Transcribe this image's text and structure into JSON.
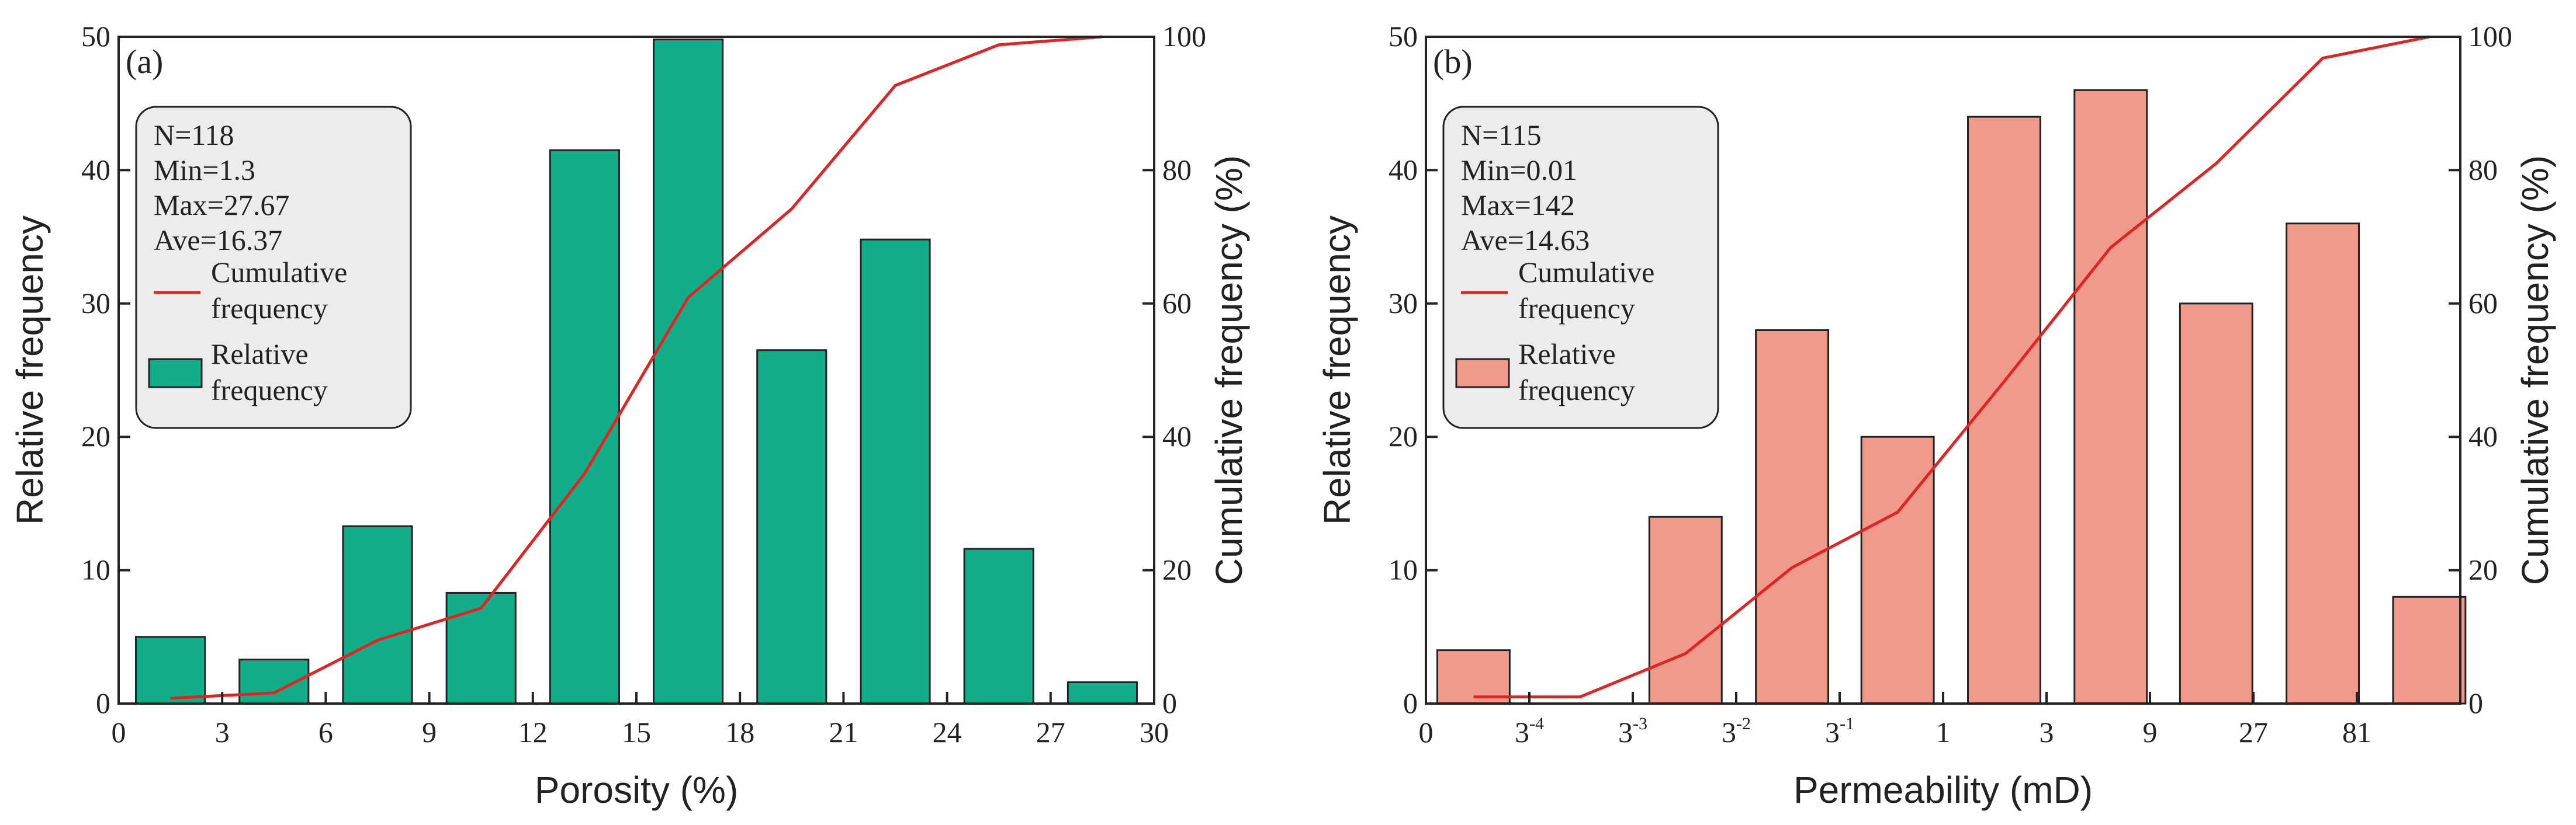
{
  "chart_data": [
    {
      "type": "bar",
      "panel_label": "(a)",
      "xlabel": "Porosity (%)",
      "ylabel": "Relative frequency",
      "y2label": "Cumulative frequency (%)",
      "x_ticks": [
        "0",
        "3",
        "6",
        "9",
        "12",
        "15",
        "18",
        "21",
        "24",
        "27",
        "30"
      ],
      "xlim": [
        0,
        30
      ],
      "ylim": [
        0,
        50
      ],
      "y_ticks": [
        0,
        10,
        20,
        30,
        40,
        50
      ],
      "y2lim": [
        0,
        100
      ],
      "y2_ticks": [
        0,
        20,
        40,
        60,
        80,
        100
      ],
      "bar_color": "#14ad89",
      "line_color": "#e02424",
      "bins": [
        {
          "x0": 0.5,
          "x1": 2.5,
          "value": 5.0
        },
        {
          "x0": 3.5,
          "x1": 5.5,
          "value": 3.3
        },
        {
          "x0": 6.5,
          "x1": 8.5,
          "value": 13.3
        },
        {
          "x0": 9.5,
          "x1": 11.5,
          "value": 8.3
        },
        {
          "x0": 12.5,
          "x1": 14.5,
          "value": 41.5
        },
        {
          "x0": 15.5,
          "x1": 17.5,
          "value": 49.8
        },
        {
          "x0": 18.5,
          "x1": 20.5,
          "value": 26.5
        },
        {
          "x0": 21.5,
          "x1": 23.5,
          "value": 34.8
        },
        {
          "x0": 24.5,
          "x1": 26.5,
          "value": 11.6
        },
        {
          "x0": 27.5,
          "x1": 29.5,
          "value": 1.6
        }
      ],
      "cumulative": {
        "x": [
          1.5,
          4.5,
          7.5,
          10.5,
          13.5,
          16.5,
          19.5,
          22.5,
          25.5,
          28.5
        ],
        "y": [
          0.8,
          1.6,
          9.5,
          14.3,
          34.5,
          60.9,
          74.2,
          92.7,
          98.8,
          100
        ]
      },
      "stats": [
        "N=118",
        "Min=1.3",
        "Max=27.67",
        "Ave=16.37"
      ],
      "legend": {
        "line": [
          "Cumulative",
          "frequency"
        ],
        "bar": [
          "Relative",
          "frequency"
        ]
      }
    },
    {
      "type": "bar",
      "panel_label": "(b)",
      "xlabel": "Permeability (mD)",
      "ylabel": "Relative frequency",
      "y2label": "Cumulative frequency (%)",
      "x_ticks": [
        {
          "base": "0",
          "exp": ""
        },
        {
          "base": "3",
          "exp": "-4"
        },
        {
          "base": "3",
          "exp": "-3"
        },
        {
          "base": "3",
          "exp": "-2"
        },
        {
          "base": "3",
          "exp": "-1"
        },
        {
          "base": "1",
          "exp": ""
        },
        {
          "base": "3",
          "exp": ""
        },
        {
          "base": "9",
          "exp": ""
        },
        {
          "base": "27",
          "exp": ""
        },
        {
          "base": "81",
          "exp": ""
        }
      ],
      "x_tick_positions": [
        0,
        1,
        2,
        3,
        4,
        5,
        6,
        7,
        8,
        9
      ],
      "xlim": [
        0,
        10
      ],
      "ylim": [
        0,
        50
      ],
      "y_ticks": [
        0,
        10,
        20,
        30,
        40,
        50
      ],
      "y2lim": [
        0,
        100
      ],
      "y2_ticks": [
        0,
        20,
        40,
        60,
        80,
        100
      ],
      "bar_color": "#f09a8c",
      "line_color": "#e02424",
      "bins": [
        {
          "x0": 0.11,
          "x1": 0.81,
          "value": 4
        },
        {
          "x0": 2.16,
          "x1": 2.86,
          "value": 14
        },
        {
          "x0": 3.19,
          "x1": 3.89,
          "value": 28
        },
        {
          "x0": 4.21,
          "x1": 4.91,
          "value": 20
        },
        {
          "x0": 5.24,
          "x1": 5.94,
          "value": 44
        },
        {
          "x0": 6.27,
          "x1": 6.97,
          "value": 46
        },
        {
          "x0": 7.29,
          "x1": 7.99,
          "value": 30
        },
        {
          "x0": 8.32,
          "x1": 9.02,
          "value": 36
        },
        {
          "x0": 9.35,
          "x1": 10.05,
          "value": 8
        }
      ],
      "cumulative": {
        "x": [
          0.46,
          1.49,
          2.51,
          3.54,
          4.56,
          5.59,
          6.62,
          7.64,
          8.67,
          9.7
        ],
        "y": [
          1,
          1,
          7.5,
          20.4,
          28.7,
          48.3,
          68.4,
          81,
          96.8,
          100
        ]
      },
      "stats": [
        "N=115",
        "Min=0.01",
        "Max=142",
        "Ave=14.63"
      ],
      "legend": {
        "line": [
          "Cumulative",
          "frequency"
        ],
        "bar": [
          "Relative",
          "frequency"
        ]
      }
    }
  ]
}
